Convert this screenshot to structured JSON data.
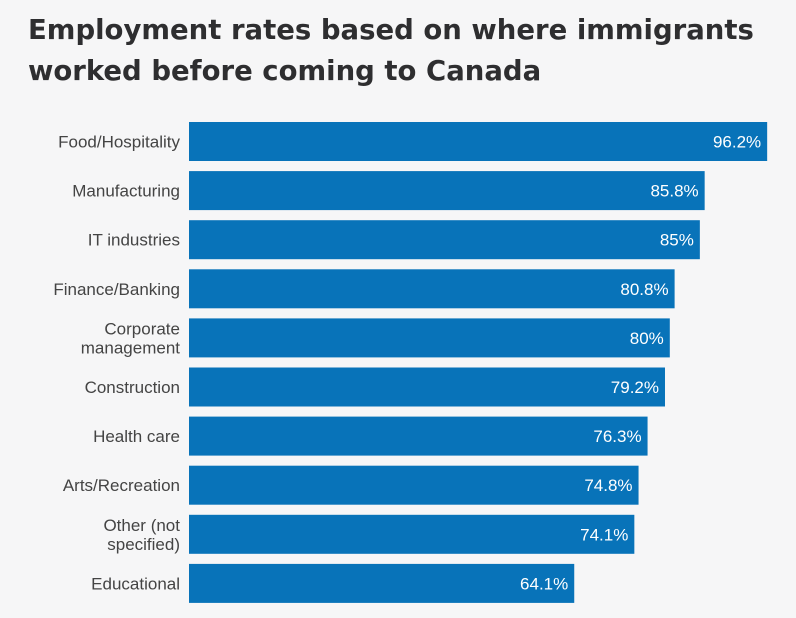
{
  "chart_data": {
    "type": "bar",
    "orientation": "horizontal",
    "title": "Employment rates based on where immigrants worked before coming to Canada",
    "xlabel": "",
    "ylabel": "",
    "xlim": [
      0,
      100
    ],
    "grid": false,
    "bar_color": "#0873b9",
    "categories": [
      [
        "Food/Hospitality"
      ],
      [
        "Manufacturing"
      ],
      [
        "IT industries"
      ],
      [
        "Finance/Banking"
      ],
      [
        "Corporate",
        "management"
      ],
      [
        "Construction"
      ],
      [
        "Health care"
      ],
      [
        "Arts/Recreation"
      ],
      [
        "Other (not",
        "specified)"
      ],
      [
        "Educational"
      ]
    ],
    "values": [
      96.2,
      85.8,
      85,
      80.8,
      80,
      79.2,
      76.3,
      74.8,
      74.1,
      64.1
    ],
    "data_labels": [
      "96.2%",
      "85.8%",
      "85%",
      "80.8%",
      "80%",
      "79.2%",
      "76.3%",
      "74.8%",
      "74.1%",
      "64.1%"
    ]
  }
}
